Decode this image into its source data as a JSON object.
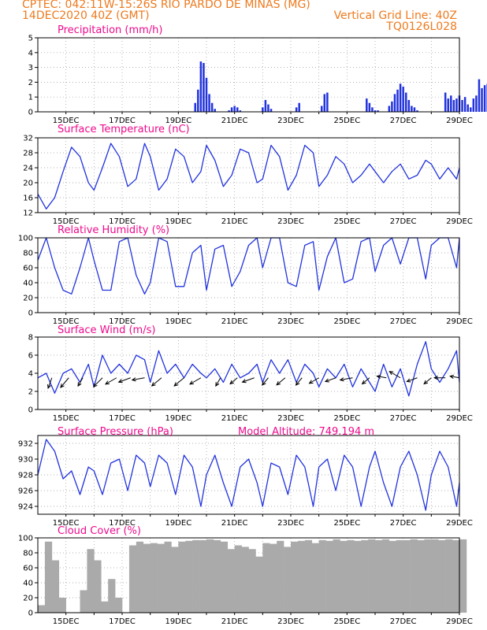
{
  "header": {
    "line1": "CPTEC:   042:11W-15:26S  RIO PARDO DE MINAS (MG)",
    "line2": "14DEC2020 40Z (GMT)",
    "right1": "Vertical Grid Line: 40Z",
    "right2": "TQ0126L028"
  },
  "colors": {
    "title": "#ee0a8c",
    "header": "#ee7a1e",
    "line": "#2233dd",
    "cloud": "#aaaaaa",
    "arrow": "#000000",
    "grid": "#999999"
  },
  "x_axis": {
    "start_day": 14,
    "end_day": 29,
    "month": "DEC",
    "tick_labels": [
      "15DEC",
      "17DEC",
      "19DEC",
      "21DEC",
      "23DEC",
      "25DEC",
      "27DEC",
      "29DEC"
    ]
  },
  "chart_data": [
    {
      "id": "precip",
      "type": "bar",
      "title": "Precipitation (mm/h)",
      "ylim": [
        0,
        5
      ],
      "yticks": [
        "0",
        "1",
        "2",
        "3",
        "4",
        "5"
      ],
      "grid": true,
      "x": [
        19.6,
        19.7,
        19.8,
        19.9,
        20.0,
        20.1,
        20.2,
        20.3,
        20.8,
        20.9,
        21.0,
        21.1,
        21.2,
        22.0,
        22.1,
        22.2,
        22.3,
        23.2,
        23.3,
        24.1,
        24.2,
        24.3,
        25.7,
        25.8,
        25.9,
        26.0,
        26.1,
        26.5,
        26.6,
        26.7,
        26.8,
        26.9,
        27.0,
        27.1,
        27.2,
        27.3,
        27.4,
        27.5,
        28.5,
        28.6,
        28.7,
        28.8,
        28.9,
        29.0,
        29.1,
        29.2,
        29.3,
        29.4,
        29.5,
        29.6,
        29.7,
        29.8,
        29.9,
        30.0
      ],
      "values": [
        0.6,
        1.5,
        3.4,
        3.3,
        2.3,
        1.2,
        0.6,
        0.2,
        0.1,
        0.3,
        0.4,
        0.3,
        0.1,
        0.3,
        0.8,
        0.5,
        0.2,
        0.3,
        0.6,
        0.4,
        1.2,
        1.3,
        0.9,
        0.6,
        0.3,
        0.1,
        0.1,
        0.4,
        0.7,
        1.2,
        1.5,
        1.9,
        1.7,
        1.3,
        0.8,
        0.4,
        0.3,
        0.1,
        1.3,
        0.9,
        1.1,
        0.8,
        0.9,
        1.1,
        0.8,
        1.0,
        0.5,
        0.3,
        0.9,
        1.1,
        2.2,
        1.6,
        1.8,
        1.9
      ]
    },
    {
      "id": "temp",
      "type": "line",
      "title": "Surface Temperature (nC)",
      "ylim": [
        12,
        32
      ],
      "yticks": [
        "12",
        "16",
        "20",
        "24",
        "28",
        "32"
      ],
      "grid": true,
      "x": [
        14.0,
        14.3,
        14.6,
        14.9,
        15.2,
        15.5,
        15.8,
        16.0,
        16.3,
        16.6,
        16.9,
        17.2,
        17.5,
        17.8,
        18.0,
        18.3,
        18.6,
        18.9,
        19.2,
        19.5,
        19.8,
        20.0,
        20.3,
        20.6,
        20.9,
        21.2,
        21.5,
        21.8,
        22.0,
        22.3,
        22.6,
        22.9,
        23.2,
        23.5,
        23.8,
        24.0,
        24.3,
        24.6,
        24.9,
        25.2,
        25.5,
        25.8,
        26.0,
        26.3,
        26.6,
        26.9,
        27.2,
        27.5,
        27.8,
        28.0,
        28.3,
        28.6,
        28.9,
        29.0
      ],
      "values": [
        17,
        13,
        16,
        23,
        29.5,
        27,
        20,
        18,
        24,
        30.5,
        27,
        19,
        21,
        30.5,
        27,
        18,
        21,
        29,
        27,
        20,
        23,
        30,
        26,
        19,
        22,
        29,
        28,
        20,
        21,
        30,
        27,
        18,
        22,
        30,
        28,
        19,
        22,
        27,
        25,
        20,
        22,
        25,
        23,
        20,
        23,
        25,
        21,
        22,
        26,
        25,
        21,
        24,
        21,
        24
      ]
    },
    {
      "id": "rh",
      "type": "line",
      "title": "Relative Humidity (%)",
      "ylim": [
        0,
        100
      ],
      "yticks": [
        "0",
        "20",
        "40",
        "60",
        "80",
        "100"
      ],
      "grid": true,
      "x": [
        14.0,
        14.3,
        14.6,
        14.9,
        15.2,
        15.5,
        15.8,
        16.0,
        16.3,
        16.6,
        16.9,
        17.2,
        17.5,
        17.8,
        18.0,
        18.3,
        18.6,
        18.9,
        19.2,
        19.5,
        19.8,
        20.0,
        20.3,
        20.6,
        20.9,
        21.2,
        21.5,
        21.8,
        22.0,
        22.3,
        22.6,
        22.9,
        23.2,
        23.5,
        23.8,
        24.0,
        24.3,
        24.6,
        24.9,
        25.2,
        25.5,
        25.8,
        26.0,
        26.3,
        26.6,
        26.9,
        27.2,
        27.5,
        27.8,
        28.0,
        28.3,
        28.6,
        28.9,
        29.0
      ],
      "values": [
        70,
        100,
        60,
        30,
        25,
        60,
        100,
        70,
        30,
        30,
        95,
        100,
        50,
        25,
        40,
        100,
        95,
        35,
        35,
        80,
        90,
        30,
        85,
        90,
        35,
        55,
        90,
        100,
        60,
        100,
        100,
        40,
        35,
        90,
        95,
        30,
        75,
        100,
        40,
        45,
        95,
        100,
        55,
        90,
        100,
        65,
        100,
        100,
        45,
        90,
        100,
        100,
        60,
        100
      ]
    },
    {
      "id": "wind",
      "type": "line",
      "title": "Surface Wind (m/s)",
      "ylim": [
        0,
        8
      ],
      "yticks": [
        "0",
        "2",
        "4",
        "6",
        "8"
      ],
      "grid": true,
      "x": [
        14.0,
        14.3,
        14.6,
        14.9,
        15.2,
        15.5,
        15.8,
        16.0,
        16.3,
        16.6,
        16.9,
        17.2,
        17.5,
        17.8,
        18.0,
        18.3,
        18.6,
        18.9,
        19.2,
        19.5,
        19.8,
        20.0,
        20.3,
        20.6,
        20.9,
        21.2,
        21.5,
        21.8,
        22.0,
        22.3,
        22.6,
        22.9,
        23.2,
        23.5,
        23.8,
        24.0,
        24.3,
        24.6,
        24.9,
        25.2,
        25.5,
        25.8,
        26.0,
        26.3,
        26.6,
        26.9,
        27.2,
        27.5,
        27.8,
        28.0,
        28.3,
        28.6,
        28.9,
        29.0
      ],
      "values": [
        3.5,
        4,
        1.8,
        4,
        4.5,
        3,
        5,
        2.5,
        6,
        4,
        5,
        4,
        6,
        5.5,
        3,
        6.5,
        4,
        5,
        3.5,
        5,
        4,
        3.5,
        4.5,
        3,
        5,
        3.5,
        4,
        5,
        3,
        5.5,
        4,
        5.5,
        3,
        5,
        4,
        2.5,
        4.5,
        3.5,
        5,
        2.5,
        4.5,
        3,
        2,
        5,
        2.5,
        4.5,
        1.5,
        5,
        7.5,
        4.5,
        3,
        4.5,
        6.5,
        3
      ],
      "arrows": {
        "x": [
          14.5,
          15.1,
          15.6,
          16.3,
          16.8,
          17.3,
          17.8,
          18.4,
          19.2,
          19.8,
          20.5,
          21.1,
          21.7,
          22.2,
          22.8,
          23.4,
          24.0,
          24.6,
          25.2,
          25.8,
          26.4,
          26.9,
          27.5,
          28.0,
          28.5,
          29.0
        ],
        "dir_deg": [
          200,
          220,
          210,
          225,
          240,
          250,
          260,
          230,
          230,
          240,
          210,
          230,
          250,
          220,
          230,
          220,
          240,
          250,
          260,
          230,
          280,
          300,
          250,
          230,
          270,
          280
        ],
        "speed": [
          3.5,
          4,
          3,
          4,
          4,
          4,
          4,
          4,
          4,
          4,
          3,
          3,
          4,
          3,
          3.5,
          3,
          3.5,
          3.5,
          4,
          3,
          3,
          4,
          3.5,
          3,
          3.5,
          3
        ]
      }
    },
    {
      "id": "pressure",
      "type": "line",
      "title": "Surface Pressure (hPa)",
      "subtitle": "Model Altitude: 749.194 m",
      "ylim": [
        923,
        933
      ],
      "yticks": [
        "924",
        "926",
        "928",
        "930",
        "932"
      ],
      "grid": true,
      "x": [
        14.0,
        14.3,
        14.6,
        14.9,
        15.2,
        15.5,
        15.8,
        16.0,
        16.3,
        16.6,
        16.9,
        17.2,
        17.5,
        17.8,
        18.0,
        18.3,
        18.6,
        18.9,
        19.2,
        19.5,
        19.8,
        20.0,
        20.3,
        20.6,
        20.9,
        21.2,
        21.5,
        21.8,
        22.0,
        22.3,
        22.6,
        22.9,
        23.2,
        23.5,
        23.8,
        24.0,
        24.3,
        24.6,
        24.9,
        25.2,
        25.5,
        25.8,
        26.0,
        26.3,
        26.6,
        26.9,
        27.2,
        27.5,
        27.8,
        28.0,
        28.3,
        28.6,
        28.9,
        29.0
      ],
      "values": [
        928,
        932.5,
        931,
        927.5,
        928.5,
        925.5,
        929,
        928.5,
        925.5,
        929.5,
        930,
        926,
        930.5,
        929.5,
        926.5,
        930.5,
        929.5,
        925.5,
        930.5,
        929,
        924,
        928,
        930.5,
        927,
        924,
        929,
        930,
        927,
        924,
        929.5,
        929,
        925.5,
        930.5,
        929,
        924,
        929,
        930,
        926,
        930.5,
        929,
        924,
        929,
        931,
        927,
        924,
        929,
        931,
        928,
        923.5,
        928,
        931,
        929,
        924,
        927
      ]
    },
    {
      "id": "cloud",
      "type": "bar",
      "title": "Cloud Cover (%)",
      "ylim": [
        0,
        100
      ],
      "yticks": [
        "0",
        "20",
        "40",
        "60",
        "80",
        "100"
      ],
      "grid": true,
      "x": [
        14.0,
        14.25,
        14.5,
        14.75,
        15.0,
        15.25,
        15.5,
        15.75,
        16.0,
        16.25,
        16.5,
        16.75,
        17.0,
        17.25,
        17.5,
        17.75,
        18.0,
        18.25,
        18.5,
        18.75,
        19.0,
        19.25,
        19.5,
        19.75,
        20.0,
        20.25,
        20.5,
        20.75,
        21.0,
        21.25,
        21.5,
        21.75,
        22.0,
        22.25,
        22.5,
        22.75,
        23.0,
        23.25,
        23.5,
        23.75,
        24.0,
        24.25,
        24.5,
        24.75,
        25.0,
        25.25,
        25.5,
        25.75,
        26.0,
        26.25,
        26.5,
        26.75,
        27.0,
        27.25,
        27.5,
        27.75,
        28.0,
        28.25,
        28.5,
        28.75,
        29.0
      ],
      "values": [
        10,
        95,
        70,
        20,
        0,
        0,
        30,
        85,
        70,
        15,
        45,
        20,
        0,
        90,
        95,
        92,
        93,
        92,
        95,
        88,
        95,
        96,
        97,
        97,
        98,
        97,
        95,
        85,
        90,
        88,
        85,
        75,
        93,
        92,
        96,
        88,
        95,
        96,
        97,
        93,
        97,
        96,
        98,
        96,
        97,
        96,
        97,
        98,
        97,
        98,
        96,
        97,
        97,
        98,
        97,
        98,
        98,
        97,
        98,
        97,
        98
      ]
    }
  ]
}
